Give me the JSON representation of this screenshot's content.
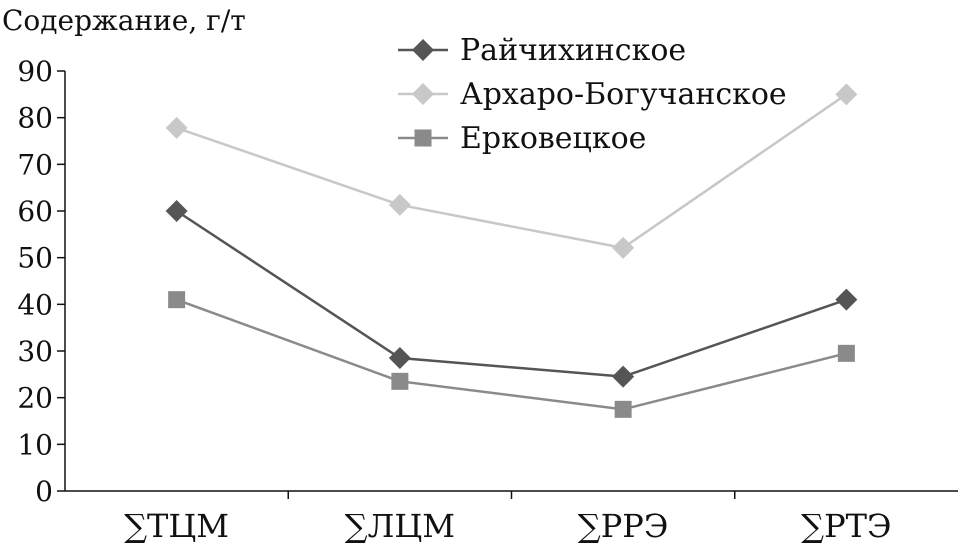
{
  "chart_data": {
    "type": "line",
    "ylabel": "Содержание, г/т",
    "ylim": [
      0,
      90
    ],
    "yticks": [
      0,
      10,
      20,
      30,
      40,
      50,
      60,
      70,
      80,
      90
    ],
    "categories": [
      "∑ТЦМ",
      "∑ЛЦМ",
      "∑РРЭ",
      "∑РТЭ"
    ],
    "legend_position": "top-right",
    "grid": false,
    "series": [
      {
        "name": "Райчихинское",
        "values": [
          60,
          28.5,
          24.5,
          41
        ],
        "color": "#555555",
        "marker": "diamond"
      },
      {
        "name": "Архаро-Богучанское",
        "values": [
          77.8,
          61.3,
          52.1,
          85
        ],
        "color": "#c8c8c8",
        "marker": "diamond"
      },
      {
        "name": "Ерковецкое",
        "values": [
          41,
          23.5,
          17.5,
          29.5
        ],
        "color": "#8a8a8a",
        "marker": "square"
      }
    ]
  }
}
